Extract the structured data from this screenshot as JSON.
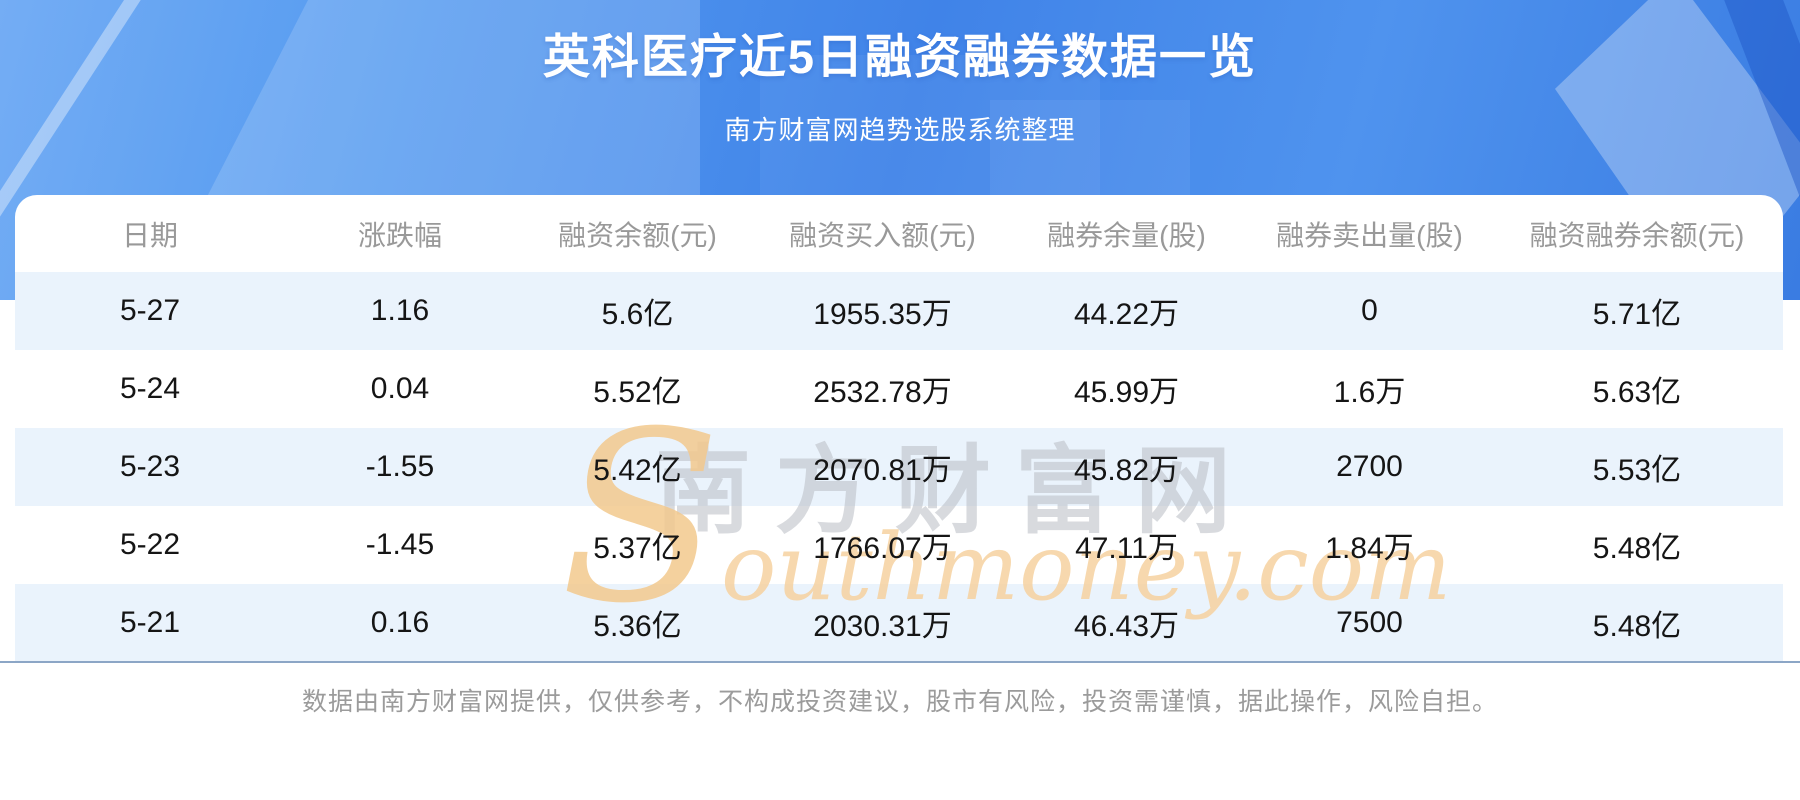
{
  "banner": {
    "title": "英科医疗近5日融资融券数据一览",
    "subtitle": "南方财富网趋势选股系统整理"
  },
  "chart_data": {
    "type": "table",
    "title": "英科医疗近5日融资融券数据一览",
    "subtitle": "南方财富网趋势选股系统整理",
    "columns": [
      "日期",
      "涨跌幅",
      "融资余额(元)",
      "融资买入额(元)",
      "融券余量(股)",
      "融券卖出量(股)",
      "融资融券余额(元)"
    ],
    "rows": [
      [
        "5-27",
        "1.16",
        "5.6亿",
        "1955.35万",
        "44.22万",
        "0",
        "5.71亿"
      ],
      [
        "5-24",
        "0.04",
        "5.52亿",
        "2532.78万",
        "45.99万",
        "1.6万",
        "5.63亿"
      ],
      [
        "5-23",
        "-1.55",
        "5.42亿",
        "2070.81万",
        "45.82万",
        "2700",
        "5.53亿"
      ],
      [
        "5-22",
        "-1.45",
        "5.37亿",
        "1766.07万",
        "47.11万",
        "1.84万",
        "5.48亿"
      ],
      [
        "5-21",
        "0.16",
        "5.36亿",
        "2030.31万",
        "46.43万",
        "7500",
        "5.48亿"
      ]
    ]
  },
  "watermark": {
    "cn": "南方财富网",
    "en_initial": "S",
    "en_rest": "outhmoney.com"
  },
  "footer": {
    "disclaimer": "数据由南方财富网提供，仅供参考，不构成投资建议，股市有风险，投资需谨慎，据此操作，风险自担。"
  },
  "colors": {
    "banner_blue": "#4083e8",
    "row_stripe": "#eaf3fc",
    "divider": "#8ca6c6",
    "header_text": "#999999",
    "cell_text": "#151515",
    "footer_text": "#9b9b9b",
    "watermark_orange": "#f6d2a0",
    "watermark_gray": "#b9bdc4"
  }
}
